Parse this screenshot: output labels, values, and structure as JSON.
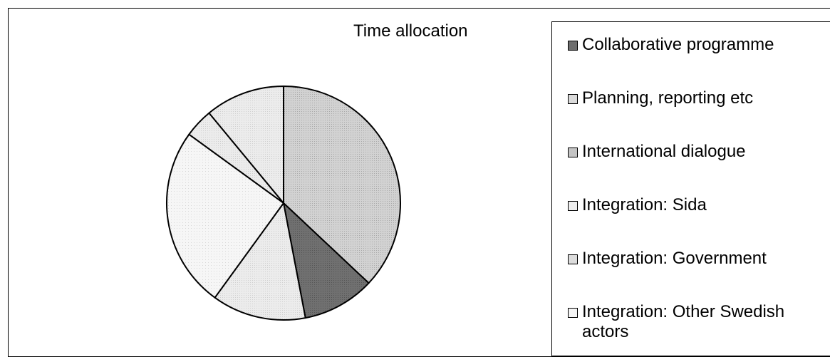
{
  "chart_data": {
    "type": "pie",
    "title": "Time allocation",
    "slices": [
      {
        "label": "Collaborative programme",
        "value": 10,
        "color": "#6e6e6e"
      },
      {
        "label": "Planning, reporting etc",
        "value": 13,
        "color": "#dadada"
      },
      {
        "label": "International dialogue",
        "value": 37,
        "color": "#c4c4c4"
      },
      {
        "label": "Integration: Sida",
        "value": 11,
        "color": "#eeeeee"
      },
      {
        "label": "Integration: Government",
        "value": 4,
        "color": "#dcdcdc"
      },
      {
        "label": "Integration: Other Swedish actors",
        "value": 25,
        "color": "#f4f4f4"
      }
    ],
    "legend_position": "right"
  }
}
